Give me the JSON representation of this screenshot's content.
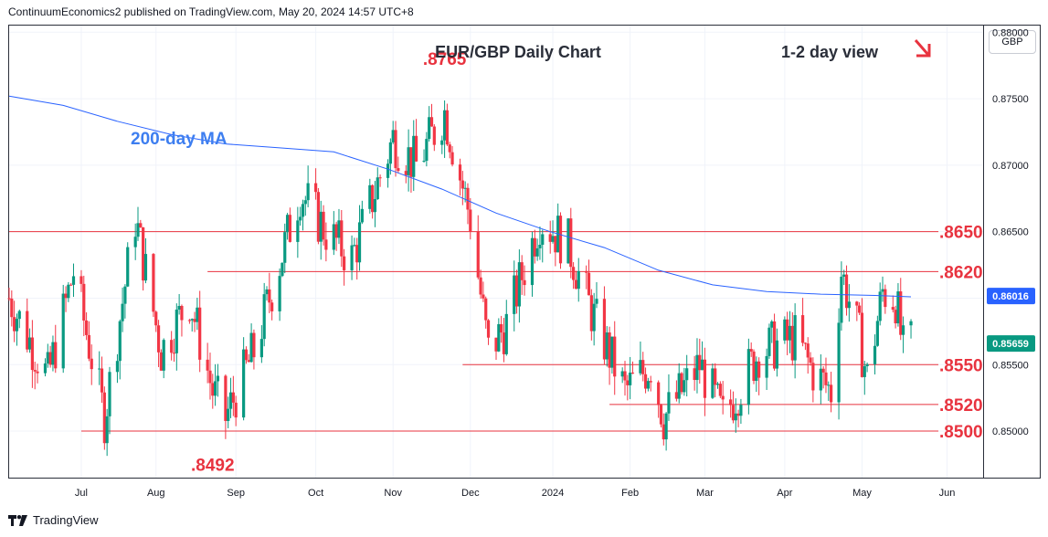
{
  "header": {
    "publisher": "ContinuumEconomics2 published on TradingView.com, May 20, 2024 14:57 UTC+8"
  },
  "axis": {
    "currency": "GBP"
  },
  "footer": {
    "brand": "TradingView",
    "logo_icon": "tradingview-logo-icon"
  },
  "chart_data": {
    "type": "candlestick",
    "title": "EUR/GBP Daily Chart",
    "subtitle": "1-2 day view",
    "view_arrow": "down-right-arrow",
    "ylim": [
      0.8465,
      0.8805
    ],
    "y_ticks": [
      {
        "value": 0.88,
        "label": "0.88000"
      },
      {
        "value": 0.875,
        "label": "0.87500"
      },
      {
        "value": 0.87,
        "label": "0.87000"
      },
      {
        "value": 0.865,
        "label": "0.86500"
      },
      {
        "value": 0.86,
        "label": "0.86000"
      },
      {
        "value": 0.855,
        "label": "0.85500"
      },
      {
        "value": 0.85,
        "label": "0.85000"
      }
    ],
    "x_ticks": [
      {
        "label": "Jul",
        "date": "2023-07-03"
      },
      {
        "label": "Aug",
        "date": "2023-08-01"
      },
      {
        "label": "Sep",
        "date": "2023-09-01"
      },
      {
        "label": "Oct",
        "date": "2023-10-02"
      },
      {
        "label": "Nov",
        "date": "2023-11-01"
      },
      {
        "label": "Dec",
        "date": "2023-12-01"
      },
      {
        "label": "2024",
        "date": "2024-01-02"
      },
      {
        "label": "Feb",
        "date": "2024-02-01"
      },
      {
        "label": "Mar",
        "date": "2024-03-01"
      },
      {
        "label": "Apr",
        "date": "2024-04-01"
      },
      {
        "label": "May",
        "date": "2024-05-01"
      },
      {
        "label": "Jun",
        "date": "2024-06-03"
      }
    ],
    "date_range": [
      "2023-06-05",
      "2024-06-17"
    ],
    "last_date": "2024-05-20",
    "grid": true,
    "ma_label": "200-day MA",
    "ma_last": {
      "value": 0.86016,
      "label": "0.86016"
    },
    "last_price": {
      "value": 0.85659,
      "label": "0.85659"
    },
    "ma_points": [
      {
        "date": "2023-06-05",
        "value": 0.8752
      },
      {
        "date": "2023-06-26",
        "value": 0.8745
      },
      {
        "date": "2023-07-17",
        "value": 0.8733
      },
      {
        "date": "2023-08-07",
        "value": 0.8723
      },
      {
        "date": "2023-08-28",
        "value": 0.8716
      },
      {
        "date": "2023-09-18",
        "value": 0.8713
      },
      {
        "date": "2023-10-09",
        "value": 0.871
      },
      {
        "date": "2023-10-30",
        "value": 0.8697
      },
      {
        "date": "2023-11-20",
        "value": 0.8682
      },
      {
        "date": "2023-12-11",
        "value": 0.8664
      },
      {
        "date": "2024-01-01",
        "value": 0.865
      },
      {
        "date": "2024-01-22",
        "value": 0.8638
      },
      {
        "date": "2024-02-12",
        "value": 0.8621
      },
      {
        "date": "2024-03-04",
        "value": 0.861
      },
      {
        "date": "2024-03-25",
        "value": 0.8605
      },
      {
        "date": "2024-04-15",
        "value": 0.8603
      },
      {
        "date": "2024-05-06",
        "value": 0.8602
      },
      {
        "date": "2024-05-20",
        "value": 0.8601
      }
    ],
    "price_path": [
      {
        "date": "2023-06-05",
        "value": 0.86
      },
      {
        "date": "2023-06-20",
        "value": 0.854
      },
      {
        "date": "2023-06-30",
        "value": 0.862
      },
      {
        "date": "2023-07-12",
        "value": 0.851
      },
      {
        "date": "2023-07-24",
        "value": 0.866
      },
      {
        "date": "2023-08-03",
        "value": 0.856
      },
      {
        "date": "2023-08-14",
        "value": 0.86
      },
      {
        "date": "2023-08-23",
        "value": 0.853
      },
      {
        "date": "2023-08-28",
        "value": 0.851
      },
      {
        "date": "2023-09-08",
        "value": 0.856
      },
      {
        "date": "2023-09-26",
        "value": 0.868
      },
      {
        "date": "2023-10-06",
        "value": 0.865
      },
      {
        "date": "2023-10-16",
        "value": 0.863
      },
      {
        "date": "2023-11-01",
        "value": 0.872
      },
      {
        "date": "2023-11-10",
        "value": 0.87
      },
      {
        "date": "2023-11-21",
        "value": 0.874
      },
      {
        "date": "2023-12-01",
        "value": 0.866
      },
      {
        "date": "2023-12-08",
        "value": 0.856
      },
      {
        "date": "2023-12-15",
        "value": 0.858
      },
      {
        "date": "2023-12-28",
        "value": 0.866
      },
      {
        "date": "2024-01-08",
        "value": 0.864
      },
      {
        "date": "2024-01-17",
        "value": 0.859
      },
      {
        "date": "2024-01-30",
        "value": 0.853
      },
      {
        "date": "2024-02-09",
        "value": 0.855
      },
      {
        "date": "2024-02-14",
        "value": 0.851
      },
      {
        "date": "2024-02-28",
        "value": 0.855
      },
      {
        "date": "2024-03-08",
        "value": 0.851
      },
      {
        "date": "2024-03-22",
        "value": 0.856
      },
      {
        "date": "2024-04-05",
        "value": 0.857
      },
      {
        "date": "2024-04-12",
        "value": 0.8545
      },
      {
        "date": "2024-04-19",
        "value": 0.853
      },
      {
        "date": "2024-04-23",
        "value": 0.862
      },
      {
        "date": "2024-04-30",
        "value": 0.857
      },
      {
        "date": "2024-05-03",
        "value": 0.854
      },
      {
        "date": "2024-05-09",
        "value": 0.8605
      },
      {
        "date": "2024-05-14",
        "value": 0.86
      },
      {
        "date": "2024-05-17",
        "value": 0.856
      },
      {
        "date": "2024-05-20",
        "value": 0.8566
      }
    ],
    "levels": [
      {
        "label": ".8650",
        "value": 0.865,
        "from": "2023-06-05"
      },
      {
        "label": ".8620",
        "value": 0.862,
        "from": "2023-08-21"
      },
      {
        "label": ".8550",
        "value": 0.855,
        "from": "2023-11-28"
      },
      {
        "label": ".8520",
        "value": 0.852,
        "from": "2024-01-24"
      },
      {
        "label": ".8500",
        "value": 0.85,
        "from": "2023-07-03"
      }
    ],
    "annotations": [
      {
        "label": ".8765",
        "value": 0.8765,
        "date": "2023-11-21"
      },
      {
        "label": ".8492",
        "value": 0.8492,
        "date": "2023-08-23"
      }
    ],
    "colors": {
      "up": "#089981",
      "down": "#f23645",
      "ma": "#2962ff",
      "level": "#e8333f",
      "level_text": "#e8333f",
      "ma_text": "#3d7ef0",
      "price_tag": "#089981",
      "ma_tag": "#2962ff",
      "grid": "#f0f3fa"
    }
  }
}
